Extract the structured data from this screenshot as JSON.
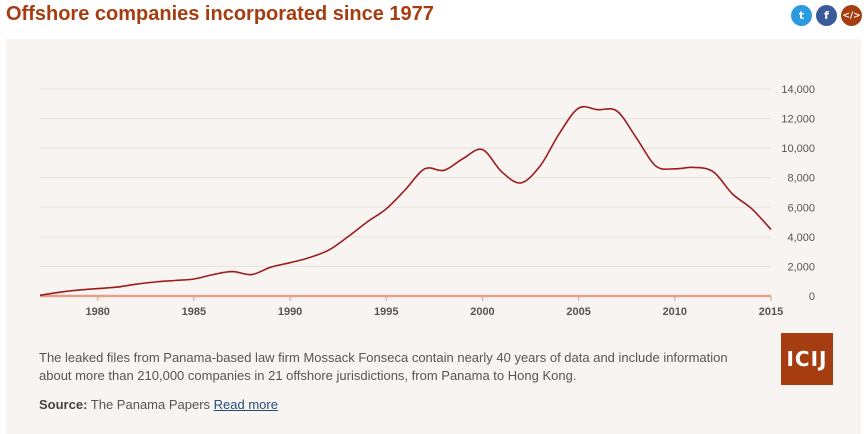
{
  "title": "Offshore companies incorporated since 1977",
  "share": {
    "twitter_icon": "twitter-icon",
    "facebook_icon": "facebook-icon",
    "embed_icon": "embed-code-icon",
    "twitter_glyph": "t",
    "facebook_glyph": "f",
    "embed_glyph": "</>"
  },
  "colors": {
    "accent": "#a63d10",
    "line": "#9b1c1c",
    "baseline": "#e0a08a",
    "card_bg": "#f8f4f1"
  },
  "chart_data": {
    "type": "line",
    "title": "",
    "xlabel": "",
    "ylabel": "",
    "xlim": [
      1977,
      2015
    ],
    "ylim": [
      0,
      14000
    ],
    "grid": true,
    "y_axis_side": "right",
    "x_ticks": [
      "1980",
      "1985",
      "1990",
      "1995",
      "2000",
      "2005",
      "2010",
      "2015"
    ],
    "y_ticks": [
      "0",
      "2,000",
      "4,000",
      "6,000",
      "8,000",
      "10,000",
      "12,000",
      "14,000"
    ],
    "x_tick_values": [
      1980,
      1985,
      1990,
      1995,
      2000,
      2005,
      2010,
      2015
    ],
    "y_tick_values": [
      0,
      2000,
      4000,
      6000,
      8000,
      10000,
      12000,
      14000
    ],
    "series": [
      {
        "x": [
          1977,
          1978,
          1979,
          1980,
          1981,
          1982,
          1983,
          1984,
          1985,
          1986,
          1987,
          1988,
          1989,
          1990,
          1991,
          1992,
          1993,
          1994,
          1995,
          1996,
          1997,
          1998,
          1999,
          2000,
          2001,
          2002,
          2003,
          2004,
          2005,
          2006,
          2007,
          2008,
          2009,
          2010,
          2011,
          2012,
          2013,
          2014,
          2015
        ],
        "values": [
          50,
          250,
          400,
          500,
          600,
          800,
          950,
          1050,
          1150,
          1450,
          1650,
          1450,
          1950,
          2250,
          2600,
          3100,
          4000,
          5000,
          5900,
          7200,
          8600,
          8500,
          9300,
          9900,
          8400,
          7650,
          8800,
          11000,
          12700,
          12600,
          12500,
          10700,
          8800,
          8600,
          8700,
          8400,
          6900,
          5900,
          4500
        ]
      }
    ]
  },
  "description": "The leaked files from Panama-based law firm Mossack Fonseca contain nearly 40 years of data and include information about more than 210,000 companies in 21 offshore jurisdictions, from Panama to Hong Kong.",
  "source": {
    "label": "Source:",
    "text": "The Panama Papers",
    "link": "Read more"
  },
  "logo": {
    "text": "ICIJ"
  }
}
